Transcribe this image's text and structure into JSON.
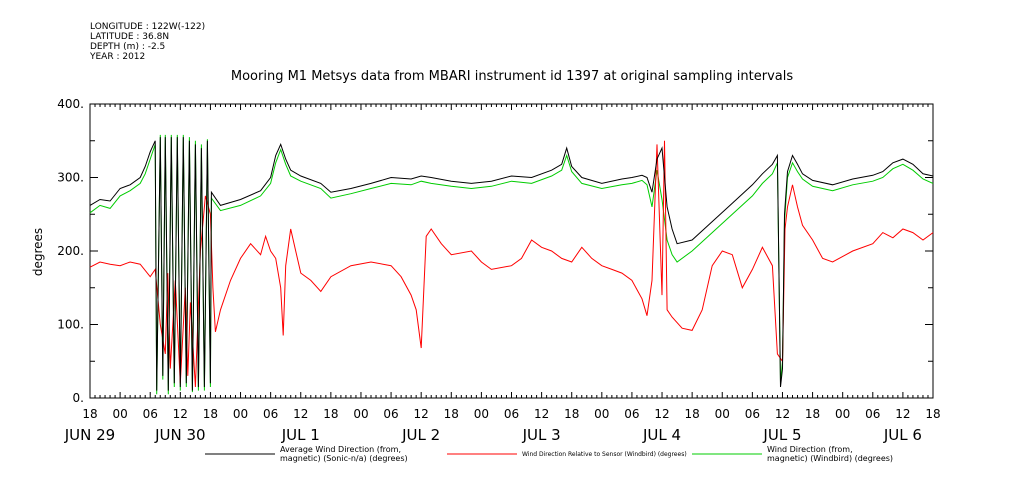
{
  "meta": {
    "longitude": "LONGITUDE : 122W(-122)",
    "latitude": "LATITUDE : 36.8N",
    "depth": "DEPTH (m) : -2.5",
    "year": "YEAR : 2012"
  },
  "chart_data": {
    "type": "line",
    "title": "Mooring M1 Metsys data from MBARI instrument id 1397 at original sampling intervals",
    "ylabel": "degrees",
    "xlabel": "",
    "ylim": [
      0,
      400
    ],
    "yticks": [
      0,
      100,
      200,
      300,
      400
    ],
    "xlim_hours": [
      0,
      168
    ],
    "x_tick_labels": [
      "18",
      "00",
      "06",
      "12",
      "18",
      "00",
      "06",
      "12",
      "18",
      "00",
      "06",
      "12",
      "18",
      "00",
      "06",
      "12",
      "18",
      "00",
      "06",
      "12",
      "18",
      "00",
      "06",
      "12",
      "18",
      "00",
      "06",
      "12",
      "18"
    ],
    "date_labels": [
      {
        "text": "JUN 29",
        "hour": 0
      },
      {
        "text": "JUN 30",
        "hour": 18
      },
      {
        "text": "JUL  1",
        "hour": 42
      },
      {
        "text": "JUL  2",
        "hour": 66
      },
      {
        "text": "JUL  3",
        "hour": 90
      },
      {
        "text": "JUL  4",
        "hour": 114
      },
      {
        "text": "JUL  5",
        "hour": 138
      },
      {
        "text": "JUL  6",
        "hour": 162
      }
    ],
    "grid": false,
    "legend_position": "bottom",
    "series": [
      {
        "name": "Average Wind Direction (from, magnetic) (Sonic-n/a) (degrees)",
        "color": "#000000",
        "points": [
          [
            0,
            262
          ],
          [
            2,
            270
          ],
          [
            4,
            268
          ],
          [
            6,
            285
          ],
          [
            8,
            290
          ],
          [
            10,
            300
          ],
          [
            11,
            315
          ],
          [
            12,
            335
          ],
          [
            13,
            350
          ],
          [
            13.3,
            10
          ],
          [
            14,
            355
          ],
          [
            14.5,
            30
          ],
          [
            15,
            355
          ],
          [
            15.6,
            10
          ],
          [
            16.2,
            355
          ],
          [
            16.8,
            20
          ],
          [
            17.4,
            355
          ],
          [
            18,
            15
          ],
          [
            18.6,
            355
          ],
          [
            19.2,
            20
          ],
          [
            19.8,
            350
          ],
          [
            20.4,
            10
          ],
          [
            21,
            345
          ],
          [
            21.6,
            15
          ],
          [
            22.2,
            340
          ],
          [
            22.8,
            15
          ],
          [
            23.4,
            350
          ],
          [
            24,
            20
          ],
          [
            24.2,
            280
          ],
          [
            26,
            262
          ],
          [
            30,
            270
          ],
          [
            34,
            282
          ],
          [
            36,
            300
          ],
          [
            37,
            330
          ],
          [
            38,
            345
          ],
          [
            39,
            325
          ],
          [
            40,
            310
          ],
          [
            42,
            302
          ],
          [
            46,
            292
          ],
          [
            48,
            280
          ],
          [
            52,
            285
          ],
          [
            56,
            292
          ],
          [
            60,
            300
          ],
          [
            64,
            298
          ],
          [
            66,
            302
          ],
          [
            68,
            300
          ],
          [
            72,
            295
          ],
          [
            76,
            292
          ],
          [
            80,
            295
          ],
          [
            84,
            302
          ],
          [
            88,
            300
          ],
          [
            92,
            310
          ],
          [
            94,
            318
          ],
          [
            95,
            340
          ],
          [
            96,
            315
          ],
          [
            98,
            300
          ],
          [
            102,
            292
          ],
          [
            106,
            298
          ],
          [
            108,
            300
          ],
          [
            110,
            303
          ],
          [
            111,
            300
          ],
          [
            112,
            280
          ],
          [
            113,
            325
          ],
          [
            114,
            340
          ],
          [
            115,
            260
          ],
          [
            116,
            230
          ],
          [
            117,
            210
          ],
          [
            120,
            215
          ],
          [
            124,
            240
          ],
          [
            128,
            265
          ],
          [
            132,
            290
          ],
          [
            134,
            305
          ],
          [
            136,
            318
          ],
          [
            137,
            330
          ],
          [
            137.6,
            15
          ],
          [
            138,
            40
          ],
          [
            138.4,
            250
          ],
          [
            139,
            308
          ],
          [
            140,
            330
          ],
          [
            141,
            318
          ],
          [
            142,
            305
          ],
          [
            144,
            296
          ],
          [
            148,
            290
          ],
          [
            152,
            298
          ],
          [
            156,
            303
          ],
          [
            158,
            308
          ],
          [
            160,
            320
          ],
          [
            162,
            325
          ],
          [
            164,
            318
          ],
          [
            166,
            305
          ],
          [
            168,
            302
          ]
        ]
      },
      {
        "name": "Wind Direction Relative to Sensor (Windbird) (degrees)",
        "color": "#ff0000",
        "points": [
          [
            0,
            178
          ],
          [
            2,
            185
          ],
          [
            4,
            182
          ],
          [
            6,
            180
          ],
          [
            8,
            185
          ],
          [
            10,
            182
          ],
          [
            12,
            165
          ],
          [
            13,
            175
          ],
          [
            14,
            100
          ],
          [
            15,
            60
          ],
          [
            15.5,
            170
          ],
          [
            16,
            40
          ],
          [
            17,
            160
          ],
          [
            18,
            20
          ],
          [
            19,
            150
          ],
          [
            19.5,
            30
          ],
          [
            20,
            130
          ],
          [
            21,
            15
          ],
          [
            22,
            200
          ],
          [
            23,
            275
          ],
          [
            24,
            250
          ],
          [
            24.5,
            150
          ],
          [
            25,
            90
          ],
          [
            26,
            120
          ],
          [
            28,
            160
          ],
          [
            30,
            190
          ],
          [
            32,
            210
          ],
          [
            34,
            195
          ],
          [
            35,
            220
          ],
          [
            36,
            200
          ],
          [
            37,
            190
          ],
          [
            38,
            150
          ],
          [
            38.5,
            85
          ],
          [
            39,
            180
          ],
          [
            40,
            230
          ],
          [
            41,
            200
          ],
          [
            42,
            170
          ],
          [
            44,
            160
          ],
          [
            46,
            145
          ],
          [
            48,
            165
          ],
          [
            52,
            180
          ],
          [
            56,
            185
          ],
          [
            60,
            180
          ],
          [
            62,
            165
          ],
          [
            64,
            140
          ],
          [
            65,
            120
          ],
          [
            66,
            68
          ],
          [
            67,
            220
          ],
          [
            68,
            230
          ],
          [
            70,
            210
          ],
          [
            72,
            195
          ],
          [
            76,
            200
          ],
          [
            78,
            185
          ],
          [
            80,
            175
          ],
          [
            84,
            180
          ],
          [
            86,
            190
          ],
          [
            88,
            215
          ],
          [
            90,
            205
          ],
          [
            92,
            200
          ],
          [
            94,
            190
          ],
          [
            96,
            185
          ],
          [
            98,
            205
          ],
          [
            100,
            190
          ],
          [
            102,
            180
          ],
          [
            104,
            175
          ],
          [
            106,
            170
          ],
          [
            108,
            160
          ],
          [
            110,
            135
          ],
          [
            111,
            112
          ],
          [
            112,
            160
          ],
          [
            113,
            345
          ],
          [
            114,
            140
          ],
          [
            114.5,
            350
          ],
          [
            115,
            120
          ],
          [
            116,
            110
          ],
          [
            118,
            95
          ],
          [
            120,
            92
          ],
          [
            122,
            120
          ],
          [
            124,
            180
          ],
          [
            126,
            200
          ],
          [
            128,
            195
          ],
          [
            130,
            150
          ],
          [
            132,
            175
          ],
          [
            134,
            205
          ],
          [
            136,
            180
          ],
          [
            137,
            60
          ],
          [
            138,
            50
          ],
          [
            138.5,
            230
          ],
          [
            139,
            260
          ],
          [
            140,
            290
          ],
          [
            141,
            260
          ],
          [
            142,
            235
          ],
          [
            144,
            215
          ],
          [
            146,
            190
          ],
          [
            148,
            185
          ],
          [
            152,
            200
          ],
          [
            156,
            210
          ],
          [
            158,
            225
          ],
          [
            160,
            218
          ],
          [
            162,
            230
          ],
          [
            164,
            225
          ],
          [
            166,
            215
          ],
          [
            168,
            225
          ]
        ]
      },
      {
        "name": "Wind Direction (from, magnetic) (Windbird) (degrees)",
        "color": "#00cc00",
        "points": [
          [
            0,
            252
          ],
          [
            2,
            262
          ],
          [
            4,
            258
          ],
          [
            6,
            275
          ],
          [
            8,
            282
          ],
          [
            10,
            292
          ],
          [
            11,
            305
          ],
          [
            12,
            325
          ],
          [
            13,
            345
          ],
          [
            13.3,
            5
          ],
          [
            14,
            358
          ],
          [
            14.5,
            25
          ],
          [
            15,
            358
          ],
          [
            15.6,
            5
          ],
          [
            16.2,
            358
          ],
          [
            16.8,
            15
          ],
          [
            17.4,
            358
          ],
          [
            18,
            10
          ],
          [
            18.6,
            358
          ],
          [
            19.2,
            15
          ],
          [
            19.8,
            355
          ],
          [
            20.4,
            8
          ],
          [
            21,
            350
          ],
          [
            21.6,
            10
          ],
          [
            22.2,
            345
          ],
          [
            22.8,
            10
          ],
          [
            23.4,
            352
          ],
          [
            24,
            15
          ],
          [
            24.2,
            272
          ],
          [
            26,
            255
          ],
          [
            30,
            262
          ],
          [
            34,
            275
          ],
          [
            36,
            292
          ],
          [
            37,
            320
          ],
          [
            38,
            338
          ],
          [
            39,
            318
          ],
          [
            40,
            302
          ],
          [
            42,
            295
          ],
          [
            46,
            285
          ],
          [
            48,
            272
          ],
          [
            52,
            278
          ],
          [
            56,
            285
          ],
          [
            60,
            292
          ],
          [
            64,
            290
          ],
          [
            66,
            295
          ],
          [
            68,
            292
          ],
          [
            72,
            288
          ],
          [
            76,
            285
          ],
          [
            80,
            288
          ],
          [
            84,
            295
          ],
          [
            88,
            292
          ],
          [
            92,
            302
          ],
          [
            94,
            310
          ],
          [
            95,
            330
          ],
          [
            96,
            308
          ],
          [
            98,
            292
          ],
          [
            102,
            285
          ],
          [
            106,
            290
          ],
          [
            108,
            292
          ],
          [
            110,
            296
          ],
          [
            111,
            290
          ],
          [
            112,
            260
          ],
          [
            113,
            310
          ],
          [
            114,
            270
          ],
          [
            115,
            215
          ],
          [
            116,
            195
          ],
          [
            117,
            185
          ],
          [
            120,
            200
          ],
          [
            124,
            225
          ],
          [
            128,
            250
          ],
          [
            132,
            275
          ],
          [
            134,
            292
          ],
          [
            136,
            305
          ],
          [
            137,
            320
          ],
          [
            137.6,
            20
          ],
          [
            138,
            50
          ],
          [
            138.4,
            240
          ],
          [
            139,
            300
          ],
          [
            140,
            320
          ],
          [
            141,
            308
          ],
          [
            142,
            298
          ],
          [
            144,
            288
          ],
          [
            148,
            282
          ],
          [
            152,
            290
          ],
          [
            156,
            295
          ],
          [
            158,
            300
          ],
          [
            160,
            312
          ],
          [
            162,
            318
          ],
          [
            164,
            310
          ],
          [
            166,
            298
          ],
          [
            168,
            292
          ]
        ]
      }
    ],
    "legend": [
      {
        "label": "Average Wind Direction (from,\nmagnetic) (Sonic-n/a) (degrees)",
        "color": "#000000"
      },
      {
        "label": "Wind Direction Relative to Sensor (Windbird) (degrees)",
        "color": "#ff0000"
      },
      {
        "label": "Wind Direction (from,\nmagnetic) (Windbird) (degrees)",
        "color": "#00cc00"
      }
    ]
  }
}
